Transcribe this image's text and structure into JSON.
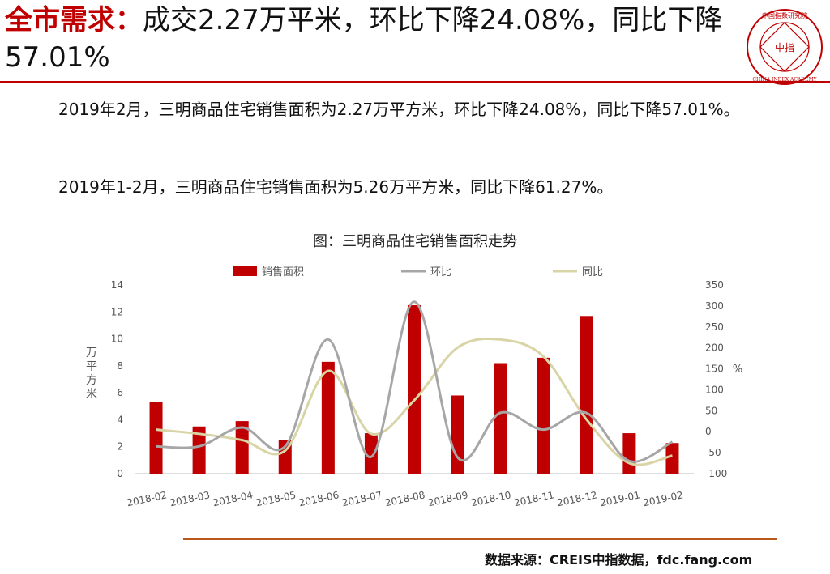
{
  "header": {
    "title_accent": "全市需求：",
    "title_rest": "成交2.27万平米，环比下降24.08%，同比下降57.01%"
  },
  "logo": {
    "top_text": "中国指数研究院",
    "center_text": "中指",
    "bottom_text": "CHINA INDEX ACADEMY",
    "color": "#c00000"
  },
  "body": {
    "para1": "2019年2月，三明商品住宅销售面积为2.27万平方米，环比下降24.08%，同比下降57.01%。",
    "para2": "2019年1-2月，三明商品住宅销售面积为5.26万平方米，同比下降61.27%。"
  },
  "chart_title": "图：三明商品住宅销售面积走势",
  "source": "数据来源：CREIS中指数据，fdc.fang.com",
  "chart_data": {
    "type": "bar",
    "categories": [
      "2018-02",
      "2018-03",
      "2018-04",
      "2018-05",
      "2018-06",
      "2018-07",
      "2018-08",
      "2018-09",
      "2018-10",
      "2018-11",
      "2018-12",
      "2019-01",
      "2019-02"
    ],
    "ylabel": "万平方米",
    "y2label": "%",
    "ylim": [
      0,
      14
    ],
    "yticks": [
      0,
      2,
      4,
      6,
      8,
      10,
      12,
      14
    ],
    "y2lim": [
      -100,
      350
    ],
    "y2ticks": [
      -100,
      -50,
      0,
      50,
      100,
      150,
      200,
      250,
      300,
      350
    ],
    "legend_position": "top",
    "grid": false,
    "series": [
      {
        "name": "销售面积",
        "type": "bar",
        "axis": "left",
        "color": "#c00000",
        "values": [
          5.3,
          3.5,
          3.9,
          2.5,
          8.3,
          3.0,
          12.5,
          5.8,
          8.2,
          8.6,
          11.7,
          3.0,
          2.27
        ]
      },
      {
        "name": "环比",
        "type": "line",
        "axis": "right",
        "color": "#a6a6a6",
        "values": [
          -35,
          -35,
          10,
          -35,
          220,
          -60,
          310,
          -60,
          45,
          5,
          45,
          -70,
          -24.08
        ]
      },
      {
        "name": "同比",
        "type": "line",
        "axis": "right",
        "color": "#d9d4a6",
        "values": [
          5,
          -5,
          -20,
          -45,
          145,
          -5,
          75,
          200,
          220,
          180,
          30,
          -75,
          -57.01
        ]
      }
    ]
  }
}
